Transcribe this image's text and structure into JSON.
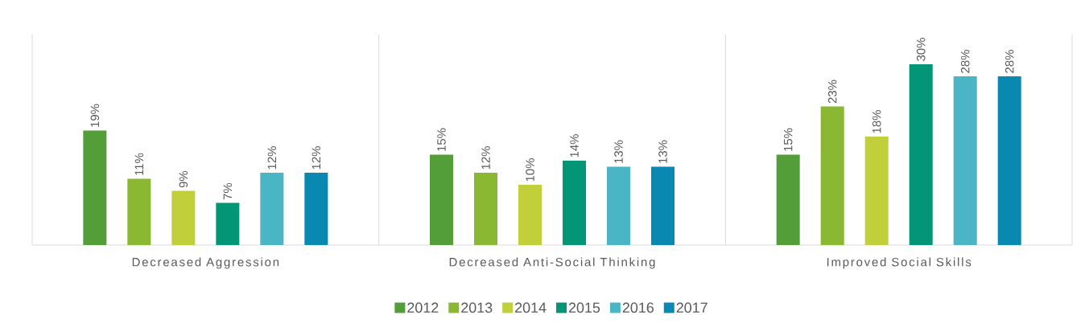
{
  "chart_data": {
    "type": "bar",
    "categories": [
      "Decreased Aggression",
      "Decreased Anti-Social Thinking",
      "Improved Social Skills"
    ],
    "series": [
      {
        "name": "2012",
        "color": "#549e39",
        "values": [
          19,
          15,
          15
        ],
        "value_labels": [
          "19%",
          "15%",
          "15%"
        ]
      },
      {
        "name": "2013",
        "color": "#8ab833",
        "values": [
          11,
          12,
          23
        ],
        "value_labels": [
          "11%",
          "12%",
          "23%"
        ]
      },
      {
        "name": "2014",
        "color": "#c0cf3a",
        "values": [
          9,
          10,
          18
        ],
        "value_labels": [
          "9%",
          "10%",
          "18%"
        ]
      },
      {
        "name": "2015",
        "color": "#029676",
        "values": [
          7,
          14,
          30
        ],
        "value_labels": [
          "7%",
          "14%",
          "30%"
        ]
      },
      {
        "name": "2016",
        "color": "#4ab5c4",
        "values": [
          12,
          13,
          28
        ],
        "value_labels": [
          "12%",
          "13%",
          "28%"
        ]
      },
      {
        "name": "2017",
        "color": "#0989b1",
        "values": [
          12,
          13,
          28
        ],
        "value_labels": [
          "12%",
          "13%",
          "28%"
        ]
      }
    ],
    "grid": "x",
    "legend": "bottom"
  }
}
